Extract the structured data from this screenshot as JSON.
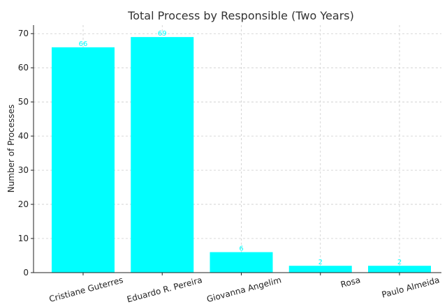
{
  "chart_data": {
    "type": "bar",
    "title": "Total Process by Responsible (Two Years)",
    "xlabel": "",
    "ylabel": "Number of Processes",
    "categories": [
      "Cristiane Guterres",
      "Eduardo R. Pereira",
      "Giovanna Angelim",
      "Rosa",
      "Paulo Almeida"
    ],
    "values": [
      66,
      69,
      6,
      2,
      2
    ],
    "data_labels": [
      "66",
      "69",
      "6",
      "2",
      "2"
    ],
    "ylim": [
      0,
      72.5
    ],
    "yticks": [
      0,
      10,
      20,
      30,
      40,
      50,
      60,
      70
    ],
    "grid": true,
    "bar_color": "#00ffff",
    "label_color": "#00ffff"
  }
}
